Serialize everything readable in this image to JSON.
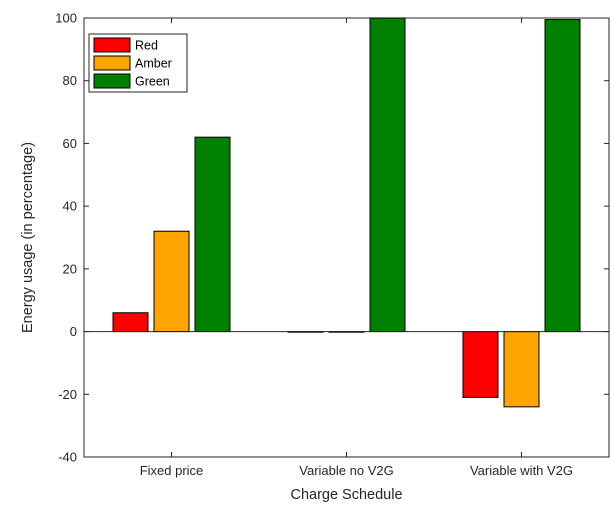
{
  "chart_data": {
    "type": "bar",
    "title": "",
    "xlabel": "Charge Schedule",
    "ylabel": "Energy usage (in percentage)",
    "categories": [
      "Fixed price",
      "Variable no V2G",
      "Variable with V2G"
    ],
    "series": [
      {
        "name": "Red",
        "color": "#ff0000",
        "values": [
          6,
          -0.2,
          -21
        ]
      },
      {
        "name": "Amber",
        "color": "#ffa500",
        "values": [
          32,
          -0.2,
          -24
        ]
      },
      {
        "name": "Green",
        "color": "#008000",
        "values": [
          62,
          100,
          99.5
        ]
      }
    ],
    "ylim": [
      -40,
      100
    ],
    "yticks": [
      -40,
      -20,
      0,
      20,
      40,
      60,
      80,
      100
    ],
    "grid": false,
    "legend": "top-left",
    "bar_edge_color": "#000000",
    "axis_color": "#262626"
  }
}
